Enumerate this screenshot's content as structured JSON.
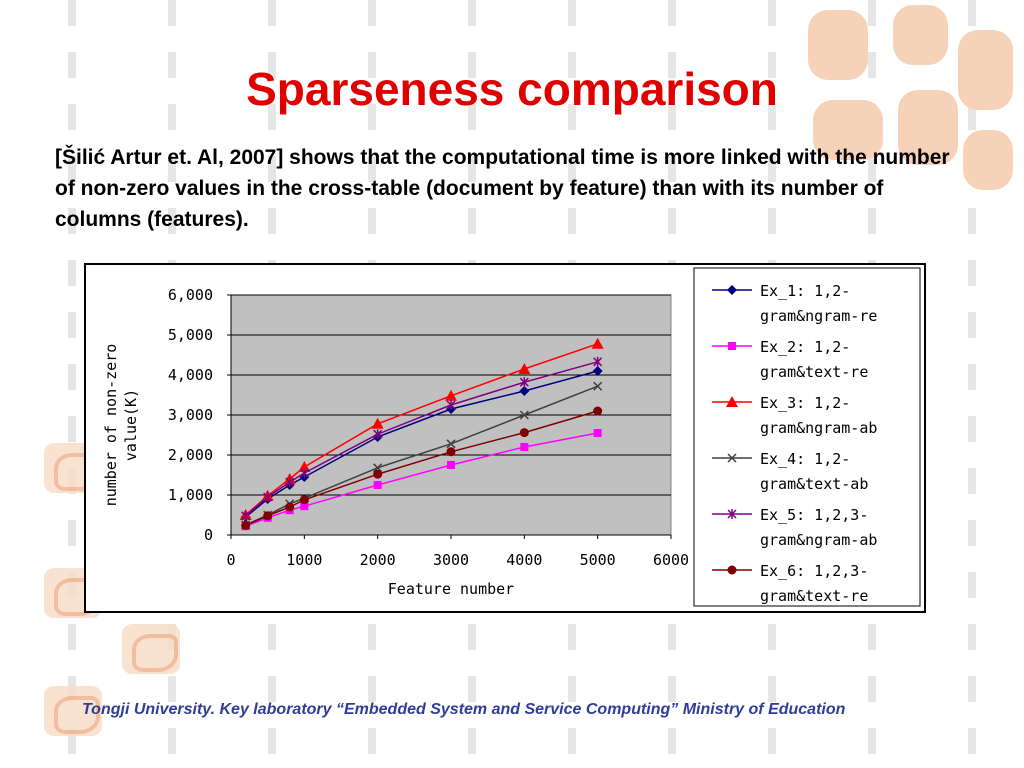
{
  "slide": {
    "title": "Sparseness comparison",
    "body": "[Šilić Artur et. Al, 2007] shows that the computational time is more linked with the number of non-zero values in the cross-table (document by feature) than with its number of columns (features).",
    "footer": "Tongji University. Key laboratory “Embedded System and Service Computing” Ministry of Education"
  },
  "chart_data": {
    "type": "line",
    "xlabel": "Feature number",
    "ylabel_lines": [
      "number of non-zero",
      "value(K)"
    ],
    "xlim": [
      0,
      6000
    ],
    "ylim": [
      0,
      6000
    ],
    "x_ticks": [
      0,
      1000,
      2000,
      3000,
      4000,
      5000,
      6000
    ],
    "x_tick_labels": [
      "0",
      "1000",
      "2000",
      "3000",
      "4000",
      "5000",
      "6000"
    ],
    "y_ticks": [
      0,
      1000,
      2000,
      3000,
      4000,
      5000,
      6000
    ],
    "y_tick_labels": [
      "0",
      "1,000",
      "2,000",
      "3,000",
      "4,000",
      "5,000",
      "6,000"
    ],
    "grid": true,
    "plot_background": "#c0c0c0",
    "legend_position": "right",
    "x": [
      200,
      500,
      800,
      1000,
      2000,
      3000,
      4000,
      5000
    ],
    "series": [
      {
        "name_lines": [
          "Ex_1: 1,2-",
          "gram&ngram-re"
        ],
        "color": "#000080",
        "marker": "diamond",
        "values": [
          450,
          900,
          1250,
          1450,
          2450,
          3150,
          3600,
          4100
        ]
      },
      {
        "name_lines": [
          "Ex_2: 1,2-",
          "gram&text-re"
        ],
        "color": "#ff00ff",
        "marker": "square",
        "values": [
          220,
          430,
          620,
          720,
          1250,
          1750,
          2200,
          2550
        ]
      },
      {
        "name_lines": [
          "Ex_3: 1,2-",
          "gram&ngram-ab"
        ],
        "color": "#ff0000",
        "marker": "triangle",
        "values": [
          500,
          980,
          1400,
          1700,
          2780,
          3480,
          4150,
          4780
        ]
      },
      {
        "name_lines": [
          "Ex_4: 1,2-",
          "gram&text-ab"
        ],
        "color": "#404040",
        "marker": "x",
        "values": [
          250,
          500,
          780,
          920,
          1680,
          2280,
          3000,
          3720
        ]
      },
      {
        "name_lines": [
          "Ex_5: 1,2,3-",
          "gram&ngram-ab"
        ],
        "color": "#800080",
        "marker": "star",
        "values": [
          480,
          950,
          1320,
          1550,
          2520,
          3250,
          3820,
          4330
        ]
      },
      {
        "name_lines": [
          "Ex_6: 1,2,3-",
          "gram&text-re"
        ],
        "color": "#800000",
        "marker": "circle",
        "values": [
          240,
          480,
          700,
          880,
          1520,
          2080,
          2560,
          3100
        ]
      }
    ]
  }
}
